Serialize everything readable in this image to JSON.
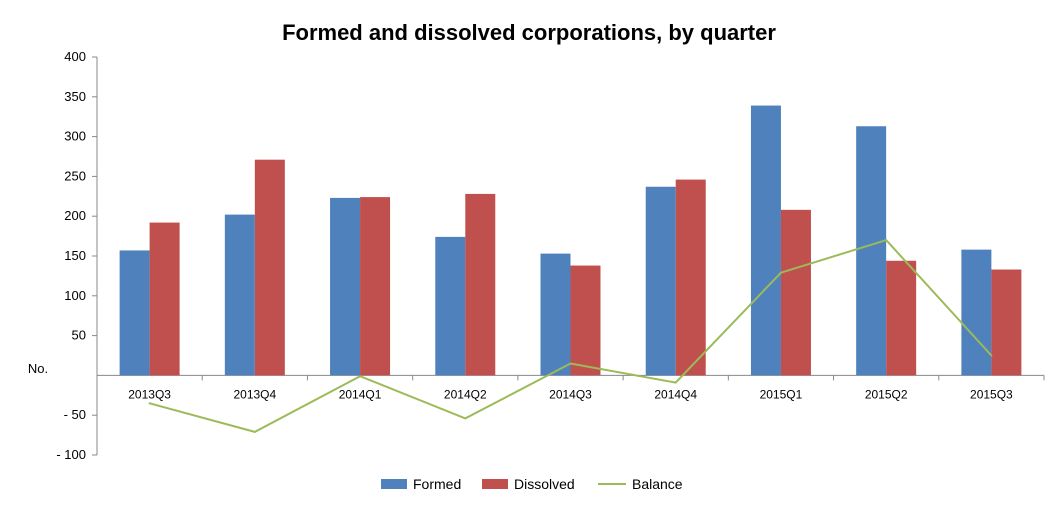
{
  "chart_data": {
    "type": "bar",
    "title": "Formed and dissolved corporations, by quarter",
    "ylabel": "No.",
    "xlabel": "",
    "ylim": [
      -100,
      400
    ],
    "yticks": [
      400,
      350,
      300,
      250,
      200,
      150,
      100,
      50,
      -50,
      -100
    ],
    "ytick_labels": [
      "400",
      "350",
      "300",
      "250",
      "200",
      "150",
      "100",
      "50",
      "- 50",
      "- 100"
    ],
    "categories": [
      "2013Q3",
      "2013Q4",
      "2014Q1",
      "2014Q2",
      "2014Q3",
      "2014Q4",
      "2015Q1",
      "2015Q2",
      "2015Q3"
    ],
    "series": [
      {
        "name": "Formed",
        "type": "bar",
        "color": "#4F81BD",
        "values": [
          157,
          202,
          223,
          174,
          153,
          237,
          339,
          313,
          158
        ]
      },
      {
        "name": "Dissolved",
        "type": "bar",
        "color": "#C0504D",
        "values": [
          192,
          271,
          224,
          228,
          138,
          246,
          208,
          144,
          133
        ]
      },
      {
        "name": "Balance",
        "type": "line",
        "color": "#9BBB59",
        "values": [
          -35,
          -71,
          -1,
          -54,
          15,
          -9,
          129,
          170,
          25
        ]
      }
    ],
    "grid": false,
    "legend_position": "bottom"
  }
}
